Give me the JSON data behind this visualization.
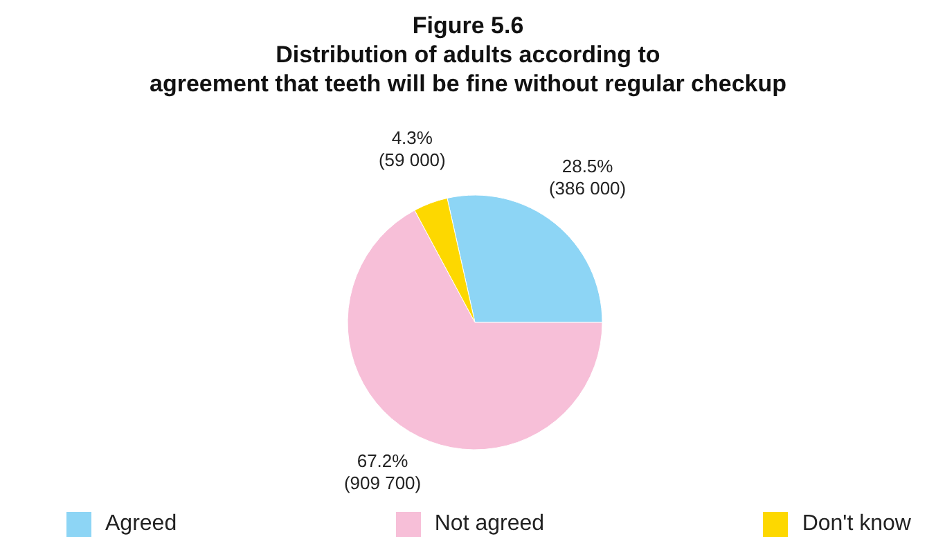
{
  "chart_data": {
    "type": "pie",
    "title": "Figure 5.6\nDistribution of adults according to\nagreement that teeth will be fine without regular checkup",
    "categories": [
      "Agreed",
      "Not agreed",
      "Don't know"
    ],
    "values": [
      386000,
      909700,
      59000
    ],
    "value_labels": [
      "28.5%\n(386 000)",
      "67.2%\n(909 700)",
      "4.3%\n(59 000)"
    ],
    "colors": [
      "#8dd5f5",
      "#f7bfd8",
      "#fdd800"
    ],
    "legend": "bottom"
  }
}
